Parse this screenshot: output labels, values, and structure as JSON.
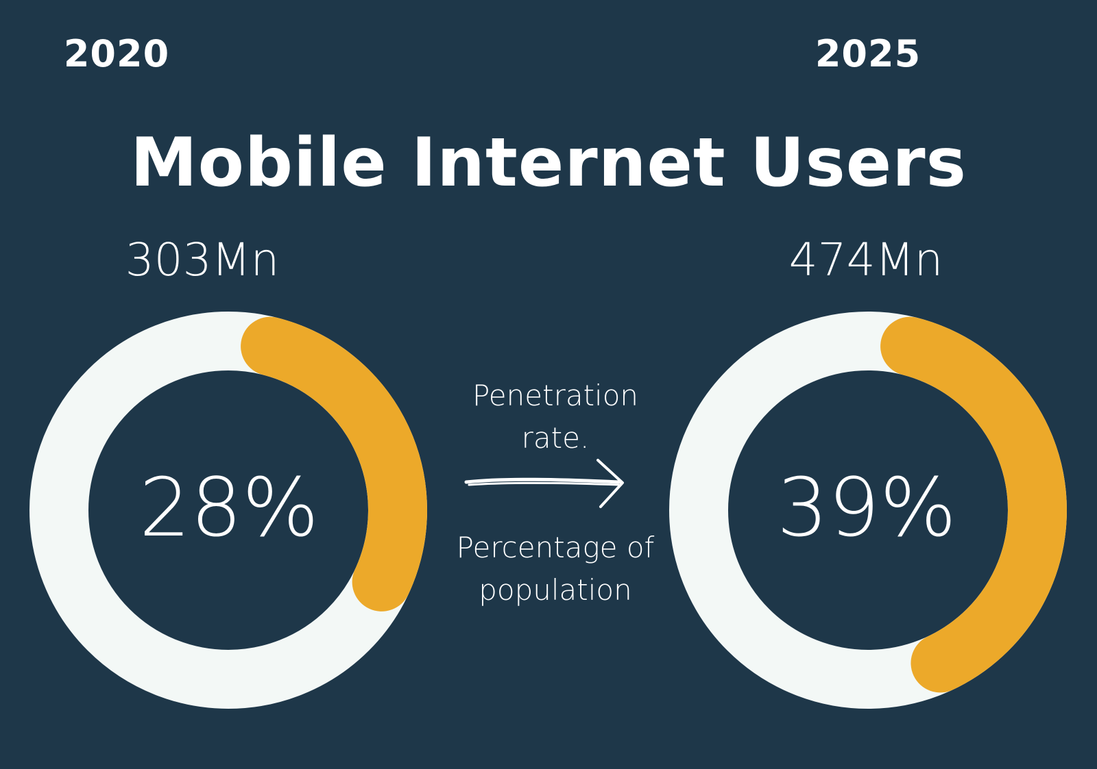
{
  "title": "Mobile Internet Users",
  "colors": {
    "background": "#1e3749",
    "track": "#f3f8f6",
    "fill": "#eca92a",
    "text": "#ffffff"
  },
  "caption_top": [
    "Penetration",
    "rate."
  ],
  "caption_bottom": [
    "Percentage of",
    "population"
  ],
  "chart_data": [
    {
      "type": "pie",
      "variant": "donut",
      "year_label": "2020",
      "users_label": "303Mn",
      "percent_label": "28%",
      "value": 28,
      "max": 100
    },
    {
      "type": "pie",
      "variant": "donut",
      "year_label": "2025",
      "users_label": "474Mn",
      "percent_label": "39%",
      "value": 39,
      "max": 100
    }
  ]
}
